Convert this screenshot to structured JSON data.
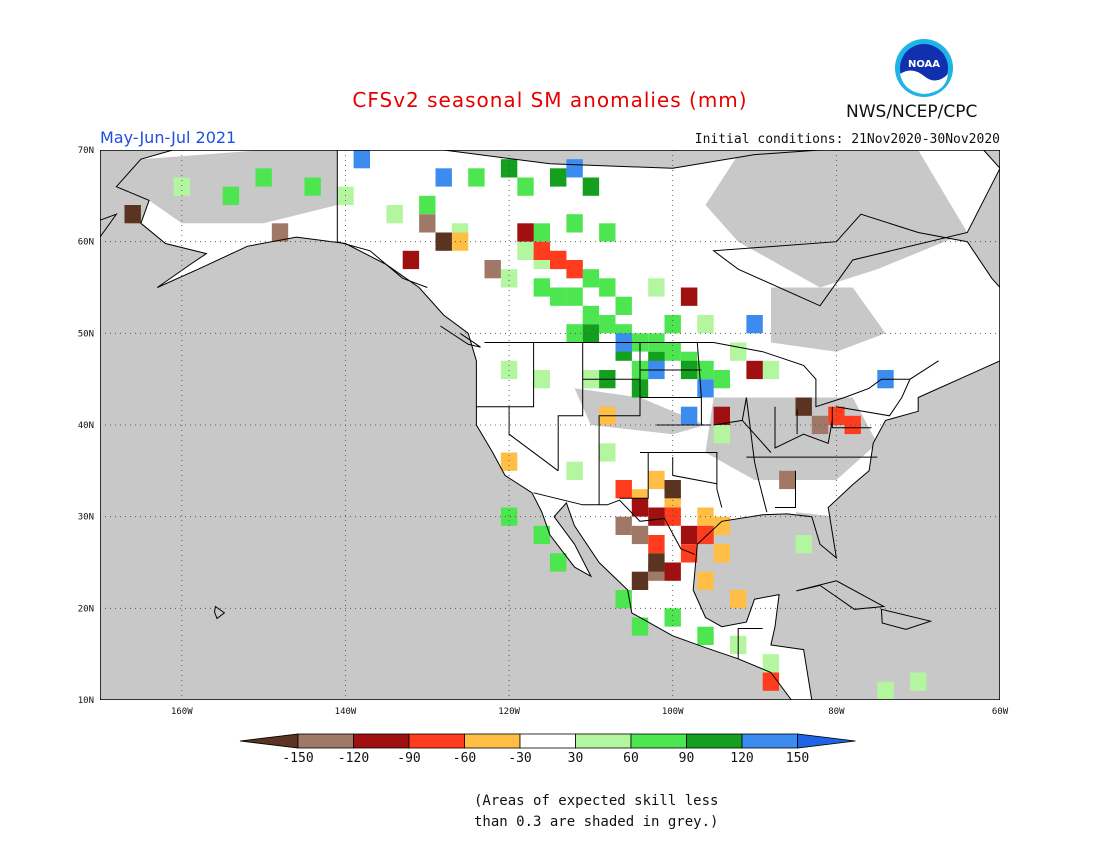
{
  "header": {
    "title": "CFSv2 seasonal SM anomalies (mm)",
    "period": "May-Jun-Jul 2021",
    "initial_conditions": "Initial conditions: 21Nov2020-30Nov2020",
    "organization": "NWS/NCEP/CPC",
    "logo_text": "NOAA"
  },
  "map": {
    "lon_range": [
      -170,
      -60
    ],
    "lat_range": [
      10,
      70
    ],
    "land_color": "#ffffff",
    "grey_color": "#c8c8c8",
    "lat_labels": [
      "10N",
      "20N",
      "30N",
      "40N",
      "50N",
      "60N",
      "70N"
    ],
    "lon_labels": [
      "160W",
      "140W",
      "120W",
      "100W",
      "80W",
      "60W"
    ]
  },
  "colorbar": {
    "labels": [
      "-150",
      "-120",
      "-90",
      "-60",
      "-30",
      "30",
      "60",
      "90",
      "120",
      "150"
    ],
    "colors": [
      "#5a3420",
      "#a07868",
      "#a01010",
      "#ff3c1e",
      "#ffbe46",
      "#ffffff",
      "#b4f5a0",
      "#4ee650",
      "#14a01e",
      "#3c8cf0",
      "#1e64e6"
    ]
  },
  "footnote": [
    "(Areas of expected skill less",
    "than 0.3 are shaded in grey.)"
  ]
}
